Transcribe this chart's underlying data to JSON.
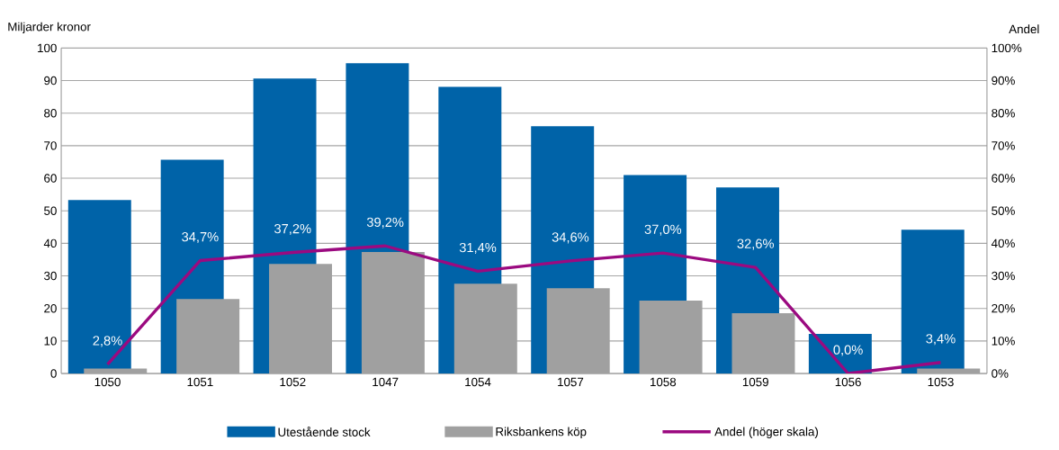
{
  "chart_data": {
    "type": "bar",
    "ylabel": "Miljarder kronor",
    "y2label": "Andel",
    "categories": [
      "1050",
      "1051",
      "1052",
      "1047",
      "1054",
      "1057",
      "1058",
      "1059",
      "1056",
      "1053"
    ],
    "series": [
      {
        "name": "Utestående stock",
        "color": "#0063a8",
        "values": [
          53.3,
          65.7,
          90.6,
          95.3,
          88.1,
          76.0,
          61.0,
          57.2,
          12.2,
          44.2
        ]
      },
      {
        "name": "Riksbankens köp",
        "color": "#a0a0a0",
        "values": [
          1.5,
          22.9,
          33.7,
          37.3,
          27.6,
          26.2,
          22.4,
          18.5,
          0,
          1.5
        ]
      },
      {
        "name": "Andel (höger skala)",
        "type": "line",
        "axis": "y2",
        "color": "#9b0a80",
        "values": [
          2.8,
          34.7,
          37.2,
          39.2,
          31.4,
          34.6,
          37.0,
          32.6,
          0.0,
          3.4
        ],
        "value_labels": [
          "2,8%",
          "34,7%",
          "37,2%",
          "39,2%",
          "31,4%",
          "34,6%",
          "37,0%",
          "32,6%",
          "0,0%",
          "3,4%"
        ]
      }
    ],
    "ylim": [
      0,
      100
    ],
    "yticks": [
      0,
      10,
      20,
      30,
      40,
      50,
      60,
      70,
      80,
      90,
      100
    ],
    "y2lim": [
      0,
      100
    ],
    "y2ticks": [
      {
        "value": 0,
        "label": "0%"
      },
      {
        "value": 10,
        "label": "10%"
      },
      {
        "value": 20,
        "label": "20%"
      },
      {
        "value": 30,
        "label": "30%"
      },
      {
        "value": 40,
        "label": "40%"
      },
      {
        "value": 50,
        "label": "50%"
      },
      {
        "value": 60,
        "label": "60%"
      },
      {
        "value": 70,
        "label": "70%"
      },
      {
        "value": 80,
        "label": "80%"
      },
      {
        "value": 90,
        "label": "90%"
      },
      {
        "value": 100,
        "label": "100%"
      }
    ],
    "grid": "y",
    "legend": "bottom"
  }
}
